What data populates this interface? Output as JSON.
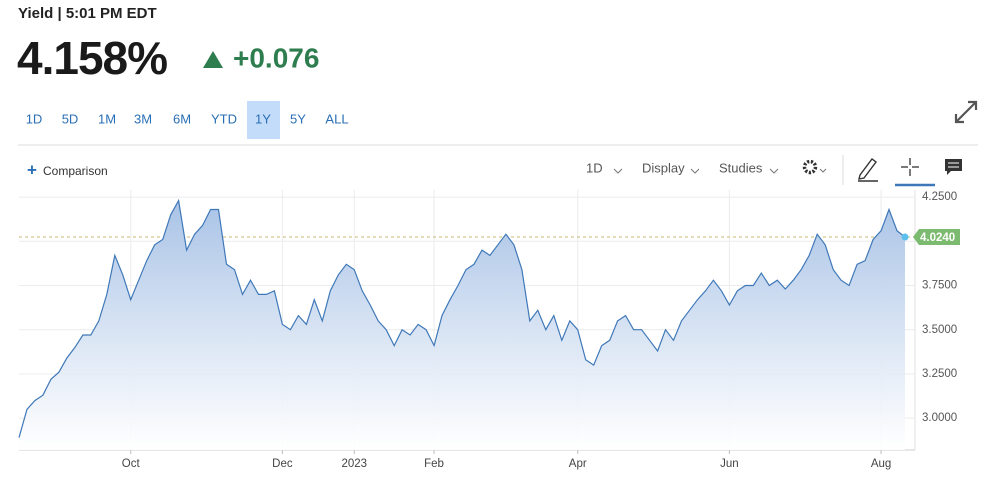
{
  "header": {
    "title": "Yield | 5:01 PM EDT",
    "price": "4.158%",
    "change": "+0.076"
  },
  "range_buttons": [
    "1D",
    "5D",
    "1M",
    "3M",
    "6M",
    "YTD",
    "1Y",
    "5Y",
    "ALL"
  ],
  "active_range": "1Y",
  "toolbar": {
    "comparison": "Comparison",
    "interval": "1D",
    "display": "Display",
    "studies": "Studies"
  },
  "chart_data": {
    "type": "area",
    "categories": [
      null,
      null,
      null,
      null,
      null,
      null,
      null,
      null,
      null,
      null,
      null,
      null,
      null,
      null,
      "Oct",
      null,
      null,
      null,
      null,
      null,
      null,
      null,
      null,
      null,
      null,
      null,
      null,
      null,
      null,
      null,
      null,
      null,
      null,
      "Dec",
      null,
      null,
      null,
      null,
      null,
      null,
      null,
      null,
      "2023",
      null,
      null,
      null,
      null,
      null,
      null,
      null,
      null,
      null,
      "Feb",
      null,
      null,
      null,
      null,
      null,
      null,
      null,
      null,
      null,
      null,
      null,
      null,
      null,
      null,
      null,
      null,
      null,
      "Apr",
      null,
      null,
      null,
      null,
      null,
      null,
      null,
      null,
      null,
      null,
      null,
      null,
      null,
      null,
      null,
      null,
      null,
      null,
      "Jun",
      null,
      null,
      null,
      null,
      null,
      null,
      null,
      null,
      null,
      null,
      null,
      null,
      null,
      null,
      null,
      null,
      null,
      null,
      "Aug",
      null,
      null,
      null
    ],
    "series": [
      {
        "color": "#3f78b8",
        "values": [
          2.89,
          3.05,
          3.1,
          3.13,
          3.22,
          3.26,
          3.34,
          3.4,
          3.47,
          3.47,
          3.55,
          3.7,
          3.92,
          3.81,
          3.67,
          3.78,
          3.89,
          3.98,
          4.01,
          4.15,
          4.23,
          3.95,
          4.04,
          4.09,
          4.18,
          4.18,
          3.87,
          3.84,
          3.7,
          3.78,
          3.7,
          3.7,
          3.72,
          3.53,
          3.5,
          3.58,
          3.53,
          3.67,
          3.55,
          3.72,
          3.81,
          3.87,
          3.84,
          3.72,
          3.64,
          3.55,
          3.5,
          3.41,
          3.5,
          3.47,
          3.53,
          3.5,
          3.41,
          3.58,
          3.67,
          3.75,
          3.84,
          3.87,
          3.95,
          3.92,
          3.98,
          4.04,
          3.98,
          3.84,
          3.55,
          3.61,
          3.5,
          3.58,
          3.44,
          3.55,
          3.5,
          3.33,
          3.3,
          3.41,
          3.44,
          3.55,
          3.58,
          3.5,
          3.5,
          3.44,
          3.38,
          3.5,
          3.44,
          3.55,
          3.61,
          3.67,
          3.72,
          3.78,
          3.72,
          3.64,
          3.72,
          3.75,
          3.75,
          3.82,
          3.75,
          3.78,
          3.73,
          3.78,
          3.84,
          3.92,
          4.04,
          3.98,
          3.84,
          3.78,
          3.75,
          3.87,
          3.89,
          4.01,
          4.06,
          4.18,
          4.06,
          4.024
        ]
      }
    ],
    "last_price": {
      "value": 4.024,
      "label": "4.0240"
    },
    "ylim": [
      2.82,
      4.29
    ],
    "yticks": [
      {
        "value": 3.0,
        "label": "3.0000"
      },
      {
        "value": 3.25,
        "label": "3.2500"
      },
      {
        "value": 3.5,
        "label": "3.5000"
      },
      {
        "value": 3.75,
        "label": "3.7500"
      },
      {
        "value": 4.0,
        "label": "4.0000"
      },
      {
        "value": 4.25,
        "label": "4.2500"
      }
    ],
    "grid": true
  }
}
